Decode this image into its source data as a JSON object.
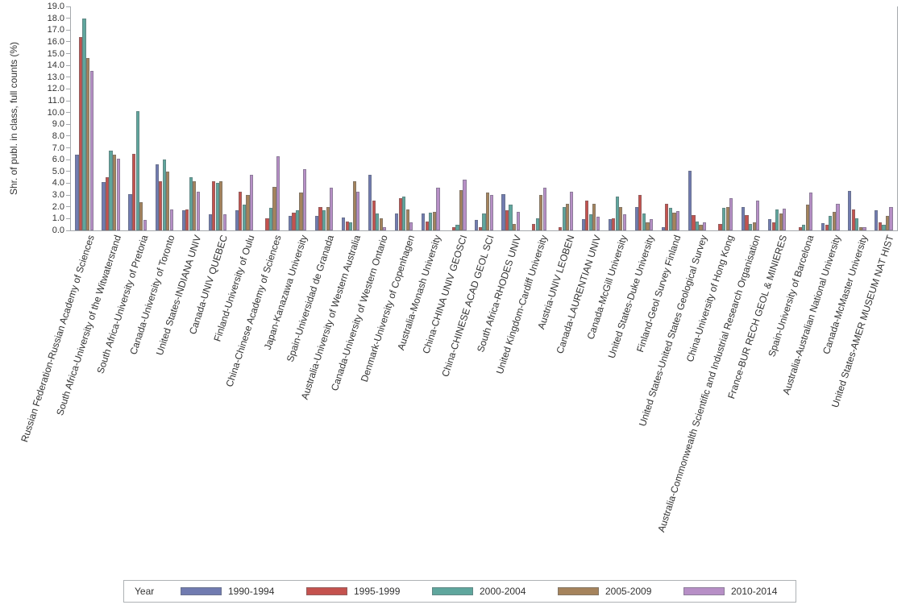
{
  "chart_data": {
    "type": "bar",
    "title": "",
    "xlabel": "",
    "ylabel": "Shr. of publ. in class, full counts (%)",
    "ylim": [
      0,
      19
    ],
    "ytick_step": 1.0,
    "ytick_labels": [
      "0.0",
      "1.0",
      "2.0",
      "3.0",
      "4.0",
      "5.0",
      "6.0",
      "7.0",
      "8.0",
      "9.0",
      "10.0",
      "11.0",
      "12.0",
      "13.0",
      "14.0",
      "15.0",
      "16.0",
      "17.0",
      "18.0",
      "19.0"
    ],
    "grid": false,
    "legend_position": "bottom",
    "legend_title": "Year",
    "series_colors": [
      "#717bb0",
      "#c4524e",
      "#5fa69d",
      "#a5835c",
      "#b78fc6"
    ],
    "categories": [
      "Russian Federation-Russian Academy of Sciences",
      "South Africa-University of the Witwatersrand",
      "South Africa-University of Pretoria",
      "Canada-University of Toronto",
      "United States-INDIANA UNIV",
      "Canada-UNIV QUEBEC",
      "Finland-University of Oulu",
      "China-Chinese Academy of Sciences",
      "Japan-Kanazawa University",
      "Spain-Universidad de Granada",
      "Australia-University of Western Australia",
      "Canada-University of Western Ontario",
      "Denmark-University of Copenhagen",
      "Australia-Monash University",
      "China-CHINA UNIV GEOSCI",
      "China-CHINESE ACAD GEOL SCI",
      "South Africa-RHODES UNIV",
      "United Kingdom-Cardiff University",
      "Austria-UNIV LEOBEN",
      "Canada-LAURENTIAN UNIV",
      "Canada-McGill University",
      "United States-Duke University",
      "Finland-Geol Survey Finland",
      "United States-United States Geological Survey",
      "China-University of Hong Kong",
      "Australia-Commonwealth Scientific and Industrial Research Organisation",
      "France-BUR RECH GEOL & MINIERES",
      "Spain-University of Barcelona",
      "Australia-Australian National University",
      "Canada-McMaster University",
      "United States-AMER MUSEUM NAT HIST"
    ],
    "series": [
      {
        "name": "1990-1994",
        "values": [
          6.4,
          4.1,
          3.1,
          5.6,
          1.7,
          1.4,
          1.7,
          0,
          1.2,
          1.2,
          1.1,
          4.7,
          1.45,
          1.45,
          0,
          0.9,
          3.1,
          0,
          0,
          0.95,
          0.95,
          2.0,
          0.3,
          5.05,
          0,
          2.0,
          0.95,
          0,
          0.6,
          3.35,
          1.7
        ]
      },
      {
        "name": "1995-1999",
        "values": [
          16.4,
          4.5,
          6.5,
          4.2,
          1.8,
          4.2,
          3.3,
          1.05,
          1.5,
          2.0,
          0.75,
          2.5,
          2.7,
          0.75,
          0.3,
          0.25,
          1.7,
          0.55,
          0.25,
          2.5,
          1.05,
          3.0,
          2.25,
          1.3,
          0.55,
          1.3,
          0.65,
          0.3,
          0.5,
          1.8,
          0.7
        ]
      },
      {
        "name": "2000-2004",
        "values": [
          18.0,
          6.8,
          10.1,
          6.0,
          4.5,
          4.0,
          2.2,
          1.9,
          1.7,
          1.7,
          0.7,
          1.45,
          2.85,
          1.5,
          0.5,
          1.45,
          2.2,
          1.0,
          1.95,
          1.4,
          2.9,
          1.45,
          1.9,
          0.75,
          1.9,
          0.55,
          1.75,
          0.5,
          1.2,
          1.05,
          0.45
        ]
      },
      {
        "name": "2005-2009",
        "values": [
          14.6,
          6.4,
          2.4,
          5.0,
          4.2,
          4.2,
          3.0,
          3.7,
          3.2,
          2.0,
          4.2,
          1.05,
          1.8,
          1.55,
          3.45,
          3.2,
          0.55,
          3.0,
          2.25,
          2.25,
          1.95,
          0.7,
          1.5,
          0.5,
          1.95,
          0.7,
          1.45,
          2.2,
          1.55,
          0.25,
          1.2
        ]
      },
      {
        "name": "2010-2014",
        "values": [
          13.5,
          6.1,
          0.9,
          1.8,
          3.3,
          1.4,
          4.7,
          6.3,
          5.2,
          3.6,
          3.3,
          0.3,
          0.7,
          3.6,
          4.3,
          3.0,
          1.6,
          3.6,
          3.3,
          1.15,
          1.4,
          0.95,
          1.65,
          0.65,
          2.75,
          2.5,
          1.85,
          3.2,
          2.25,
          0.3,
          2.0
        ]
      }
    ]
  }
}
